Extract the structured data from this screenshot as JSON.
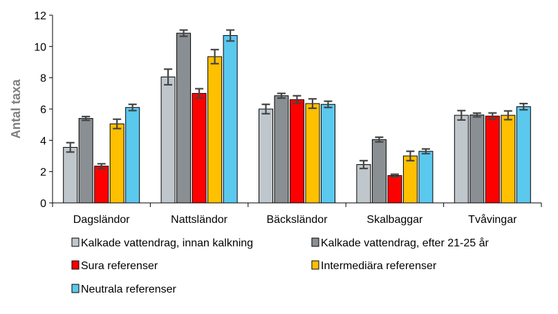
{
  "chart_data": {
    "type": "bar",
    "ylabel": "Antal taxa",
    "xlabel": "",
    "title": "",
    "ylim": [
      0,
      12
    ],
    "yticks": [
      0,
      2,
      4,
      6,
      8,
      10,
      12
    ],
    "grid": false,
    "legend_position": "bottom",
    "categories": [
      "Dagsländor",
      "Nattsländor",
      "Bäcksländor",
      "Skalbaggar",
      "Tvåvingar"
    ],
    "series": [
      {
        "name": "Kalkade vattendrag, innan kalkning",
        "color": "#c0c7cc",
        "values": [
          3.55,
          8.05,
          6.0,
          2.45,
          5.6
        ],
        "errors": [
          0.3,
          0.5,
          0.3,
          0.25,
          0.3
        ]
      },
      {
        "name": "Kalkade vattendrag, efter 21-25 år",
        "color": "#8a8f93",
        "values": [
          5.4,
          10.85,
          6.85,
          4.05,
          5.62
        ],
        "errors": [
          0.12,
          0.2,
          0.15,
          0.15,
          0.12
        ]
      },
      {
        "name": "Sura referenser",
        "color": "#ff0000",
        "values": [
          2.35,
          7.0,
          6.6,
          1.75,
          5.55
        ],
        "errors": [
          0.15,
          0.3,
          0.25,
          0.08,
          0.2
        ]
      },
      {
        "name": "Intermediära referenser",
        "color": "#ffc000",
        "values": [
          5.05,
          9.35,
          6.35,
          3.0,
          5.6
        ],
        "errors": [
          0.3,
          0.45,
          0.3,
          0.3,
          0.28
        ]
      },
      {
        "name": "Neutrala referenser",
        "color": "#5bc8ee",
        "values": [
          6.1,
          10.7,
          6.3,
          3.3,
          6.15
        ],
        "errors": [
          0.2,
          0.35,
          0.2,
          0.15,
          0.2
        ]
      }
    ]
  }
}
